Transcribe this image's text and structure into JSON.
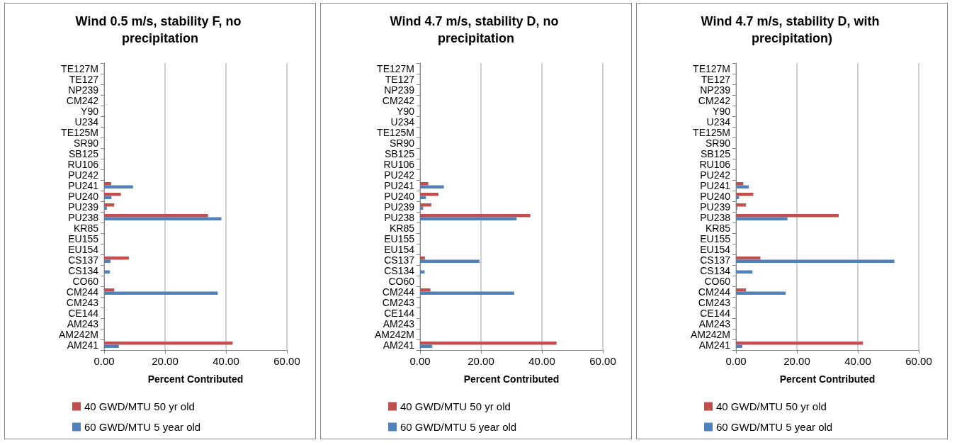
{
  "chart_data": [
    {
      "type": "bar",
      "orientation": "horizontal",
      "title": "Wind 0.5 m/s, stability F, no precipitation",
      "xlabel": "Percent Contributed",
      "categories": [
        "TE127M",
        "TE127",
        "NP239",
        "CM242",
        "Y90",
        "U234",
        "TE125M",
        "SR90",
        "SB125",
        "RU106",
        "PU242",
        "PU241",
        "PU240",
        "PU239",
        "PU238",
        "KR85",
        "EU155",
        "EU154",
        "CS137",
        "CS134",
        "CO60",
        "CM244",
        "CM243",
        "CE144",
        "AM243",
        "AM242M",
        "AM241"
      ],
      "series": [
        {
          "name": "40 GWD/MTU 50 yr old",
          "color": "#c0504d",
          "values": [
            0,
            0,
            0,
            0,
            0,
            0,
            0,
            0,
            0,
            0,
            0,
            2.3,
            5.5,
            3.3,
            34.1,
            0,
            0,
            0,
            8.1,
            0,
            0,
            3.3,
            0,
            0,
            0,
            0,
            42.2
          ]
        },
        {
          "name": "60 GWD/MTU 5 year old",
          "color": "#4f81bd",
          "values": [
            0,
            0,
            0,
            0,
            0,
            0,
            0,
            null,
            0,
            0,
            0,
            9.5,
            2.4,
            0.9,
            38.5,
            0,
            0,
            0,
            2.1,
            1.9,
            0,
            37.3,
            0,
            0,
            0,
            0,
            4.8
          ]
        }
      ],
      "xlim": [
        0,
        60
      ],
      "xticks": [
        {
          "value": 0,
          "label": "0.00"
        },
        {
          "value": 20,
          "label": "20.00"
        },
        {
          "value": 40,
          "label": "40.00"
        },
        {
          "value": 60,
          "label": "60.00"
        }
      ],
      "grid": "x",
      "legend": "bottom"
    },
    {
      "type": "bar",
      "orientation": "horizontal",
      "title": "Wind 4.7 m/s, stability D, no precipitation",
      "xlabel": "Percent Contributed",
      "categories": [
        "TE127M",
        "TE127",
        "NP239",
        "CM242",
        "Y90",
        "U234",
        "TE125M",
        "SR90",
        "SB125",
        "RU106",
        "PU242",
        "PU241",
        "PU240",
        "PU239",
        "PU238",
        "KR85",
        "EU155",
        "EU154",
        "CS137",
        "CS134",
        "CO60",
        "CM244",
        "CM243",
        "CE144",
        "AM243",
        "AM242M",
        "AM241"
      ],
      "series": [
        {
          "name": "40 GWD/MTU 50 yr old",
          "color": "#c0504d",
          "values": [
            0,
            0,
            0,
            0,
            0,
            0,
            0,
            0,
            0,
            0,
            0,
            2.7,
            6.0,
            3.7,
            36.2,
            0,
            0,
            0,
            1.6,
            0,
            0,
            3.4,
            0,
            0,
            0,
            0,
            44.8
          ]
        },
        {
          "name": "60 GWD/MTU 5 year old",
          "color": "#4f81bd",
          "values": [
            0,
            0,
            0,
            0,
            0,
            0,
            0,
            0,
            0,
            0,
            0,
            7.8,
            1.9,
            1.0,
            31.7,
            0,
            0,
            0,
            19.5,
            1.5,
            0,
            30.9,
            0,
            0,
            0,
            0,
            4.0
          ]
        }
      ],
      "xlim": [
        0,
        60
      ],
      "xticks": [
        {
          "value": 0,
          "label": "0.00"
        },
        {
          "value": 20,
          "label": "20.00"
        },
        {
          "value": 40,
          "label": "40.00"
        },
        {
          "value": 60,
          "label": "60.00"
        }
      ],
      "grid": "x",
      "legend": "bottom"
    },
    {
      "type": "bar",
      "orientation": "horizontal",
      "title": "Wind 4.7 m/s, stability D, with precipitation)",
      "xlabel": "Percent Contributed",
      "categories": [
        "TE127M",
        "TE127",
        "NP239",
        "CM242",
        "Y90",
        "U234",
        "TE125M",
        "SR90",
        "SB125",
        "RU106",
        "PU242",
        "PU241",
        "PU240",
        "PU239",
        "PU238",
        "KR85",
        "EU155",
        "EU154",
        "CS137",
        "CS134",
        "CO60",
        "CM244",
        "CM243",
        "CE144",
        "AM243",
        "AM242M",
        "AM241"
      ],
      "series": [
        {
          "name": "40 GWD/MTU 50 yr old",
          "color": "#c0504d",
          "values": [
            0,
            0,
            0,
            0,
            0,
            0,
            0,
            0,
            0,
            0,
            0,
            2.4,
            5.7,
            3.3,
            33.7,
            0,
            0,
            0,
            8.0,
            0,
            0,
            3.3,
            0,
            0,
            0,
            0,
            41.7
          ]
        },
        {
          "name": "60 GWD/MTU 5 year old",
          "color": "#4f81bd",
          "values": [
            0,
            0,
            0,
            0,
            0,
            0,
            0,
            0,
            0,
            0,
            0,
            4.2,
            1.0,
            0.4,
            16.9,
            0,
            0,
            0,
            52.0,
            5.4,
            0,
            16.3,
            0,
            0,
            0,
            0,
            2.1
          ]
        }
      ],
      "xlim": [
        0,
        60
      ],
      "xticks": [
        {
          "value": 0,
          "label": "0.00"
        },
        {
          "value": 20,
          "label": "20.00"
        },
        {
          "value": 40,
          "label": "40.00"
        },
        {
          "value": 60,
          "label": "60.00"
        }
      ],
      "grid": "x",
      "legend": "bottom"
    }
  ]
}
